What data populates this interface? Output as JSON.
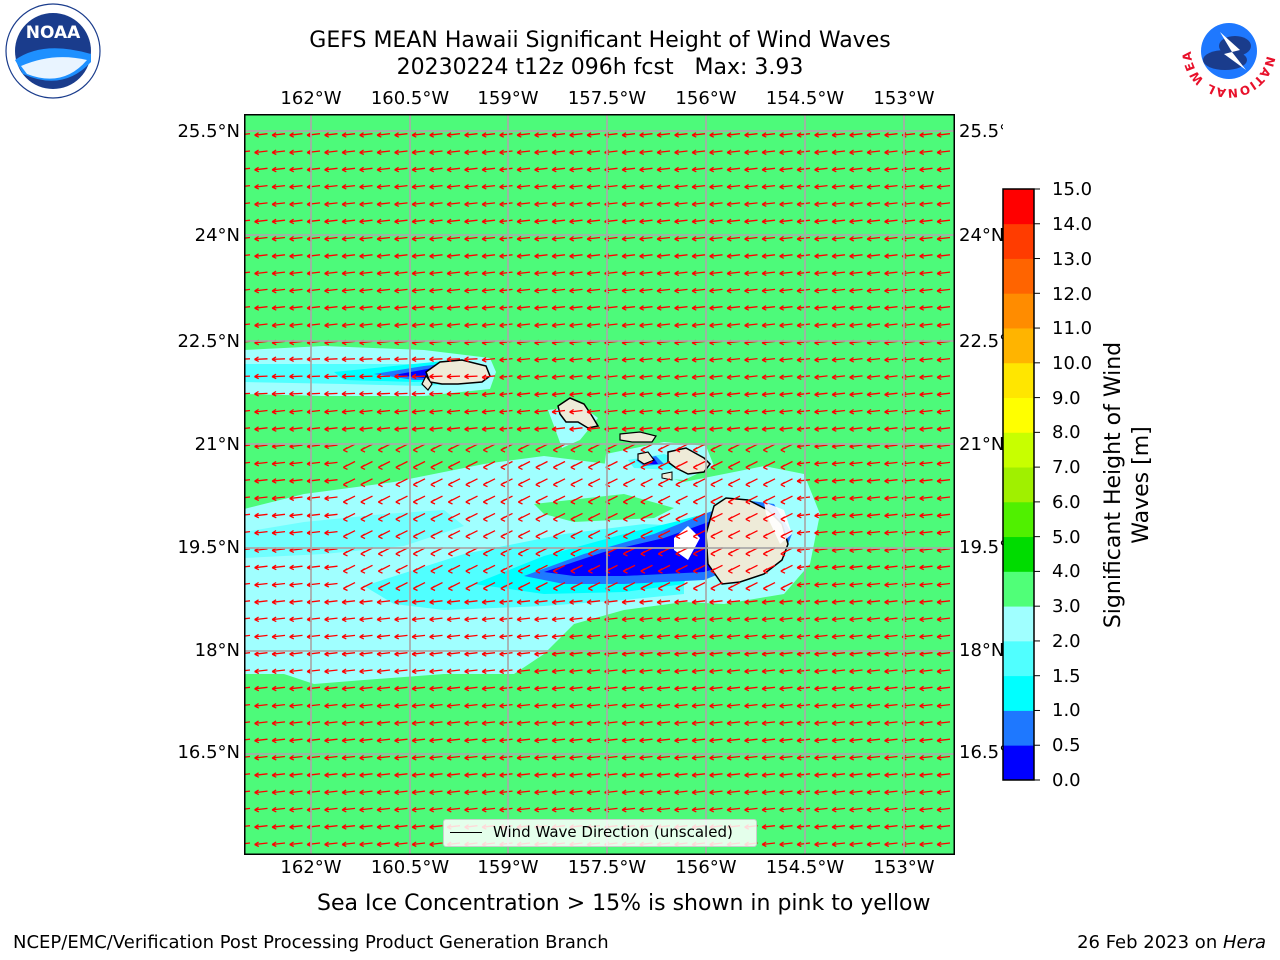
{
  "header": {
    "title_line1": "GEFS MEAN Hawaii Significant Height of Wind Waves",
    "title_line2": "20230224 t12z 096h fcst   Max: 3.93"
  },
  "map": {
    "lon_ticks": [
      "162°W",
      "160.5°W",
      "159°W",
      "157.5°W",
      "156°W",
      "154.5°W",
      "153°W"
    ],
    "lat_ticks": [
      "25.5°N",
      "24°N",
      "22.5°N",
      "21°N",
      "19.5°N",
      "18°N",
      "16.5°N"
    ],
    "legend_label": "Wind Wave Direction (unscaled)",
    "field_color": "#4dfa7a",
    "arrow_color": "#ff0000"
  },
  "colorbar": {
    "title": "Significant Height of Wind Waves [m]",
    "labels": [
      "15.0",
      "14.0",
      "13.0",
      "12.0",
      "11.0",
      "10.0",
      "9.0",
      "8.0",
      "7.0",
      "6.0",
      "5.0",
      "4.0",
      "3.0",
      "2.0",
      "1.5",
      "1.0",
      "0.5",
      "0.0"
    ],
    "colors": [
      "#0000ff",
      "#1e78ff",
      "#00ffff",
      "#50ffff",
      "#a0ffff",
      "#50ff78",
      "#00dc00",
      "#50f000",
      "#a0f000",
      "#c8ff00",
      "#ffff00",
      "#ffe600",
      "#ffb400",
      "#ff8c00",
      "#ff6400",
      "#ff3c00",
      "#ff0000"
    ]
  },
  "footer": {
    "sea_ice_note": "Sea Ice Concentration > 15% is shown in pink to yellow",
    "credit": "NCEP/EMC/Verification Post Processing Product Generation Branch",
    "date": "26 Feb 2023 on ",
    "machine": "Hera"
  },
  "logos": {
    "left_text": "NOAA",
    "right_text": "NATIONAL WEATHER SERVICE"
  }
}
